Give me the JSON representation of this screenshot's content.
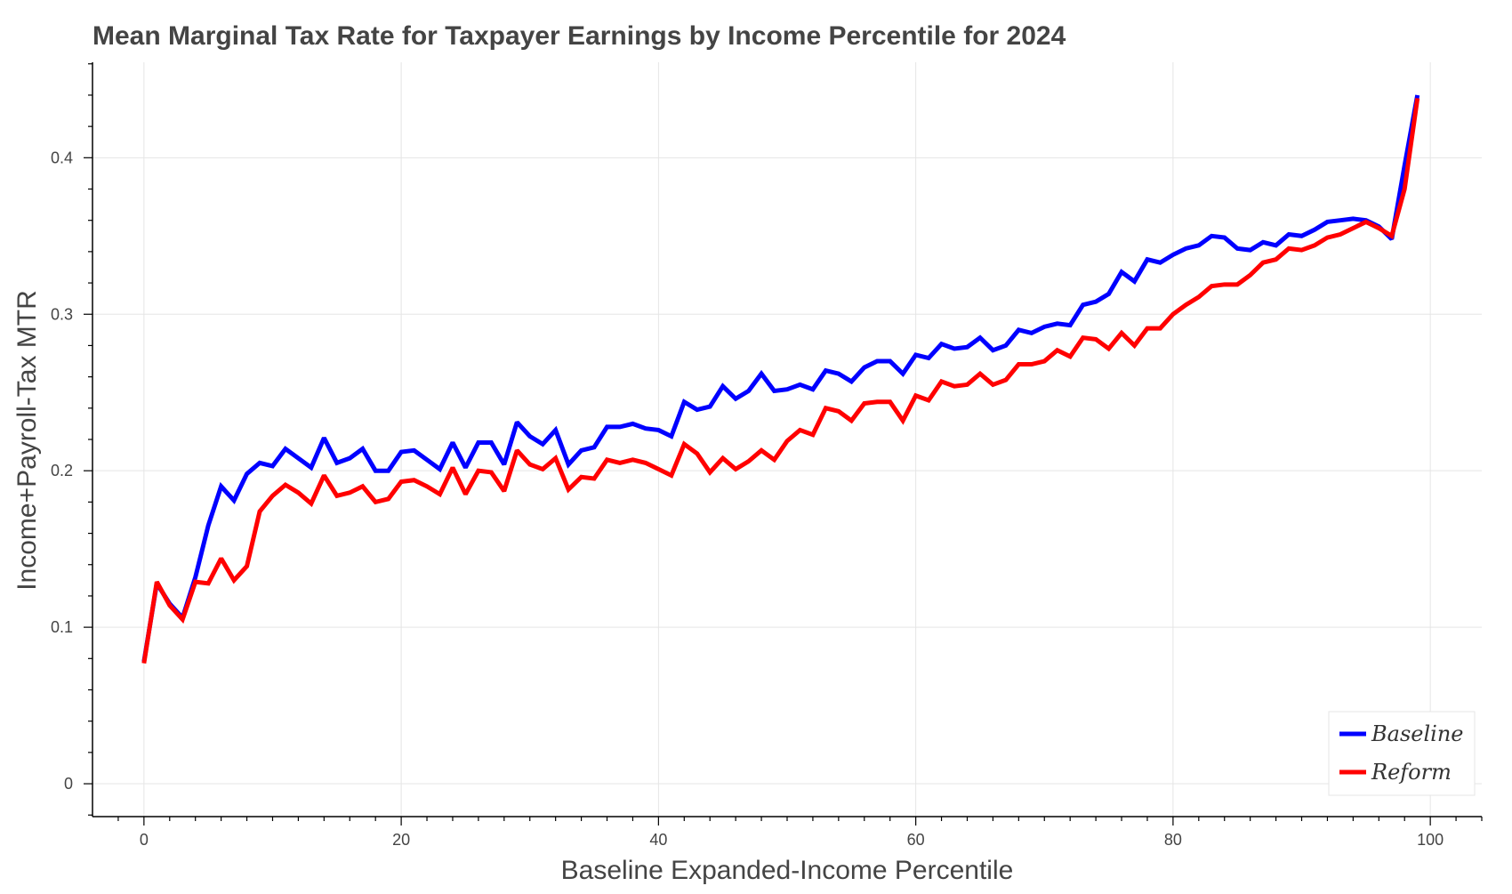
{
  "chart_data": {
    "type": "line",
    "title": "Mean Marginal Tax Rate for Taxpayer Earnings by Income Percentile for 2024",
    "xlabel": "Baseline Expanded-Income Percentile",
    "ylabel": "Income+Payroll-Tax MTR",
    "xlim": [
      -4,
      104
    ],
    "ylim": [
      -0.021,
      0.461
    ],
    "x_ticks": [
      0,
      20,
      40,
      60,
      80,
      100
    ],
    "x_tick_labels": [
      "0",
      "20",
      "40",
      "60",
      "80",
      "100"
    ],
    "y_ticks": [
      0,
      0.1,
      0.2,
      0.3,
      0.4
    ],
    "y_tick_labels": [
      "0",
      "0.1",
      "0.2",
      "0.3",
      "0.4"
    ],
    "grid": true,
    "legend_position": "bottom-right",
    "x": [
      0,
      1,
      2,
      3,
      4,
      5,
      6,
      7,
      8,
      9,
      10,
      11,
      12,
      13,
      14,
      15,
      16,
      17,
      18,
      19,
      20,
      21,
      22,
      23,
      24,
      25,
      26,
      27,
      28,
      29,
      30,
      31,
      32,
      33,
      34,
      35,
      36,
      37,
      38,
      39,
      40,
      41,
      42,
      43,
      44,
      45,
      46,
      47,
      48,
      49,
      50,
      51,
      52,
      53,
      54,
      55,
      56,
      57,
      58,
      59,
      60,
      61,
      62,
      63,
      64,
      65,
      66,
      67,
      68,
      69,
      70,
      71,
      72,
      73,
      74,
      75,
      76,
      77,
      78,
      79,
      80,
      81,
      82,
      83,
      84,
      85,
      86,
      87,
      88,
      89,
      90,
      91,
      92,
      93,
      94,
      95,
      96,
      97,
      98,
      99
    ],
    "series": [
      {
        "name": "Baseline",
        "color": "#0000ff",
        "values": [
          0.078,
          0.128,
          0.115,
          0.106,
          0.132,
          0.165,
          0.19,
          0.181,
          0.198,
          0.205,
          0.203,
          0.214,
          0.208,
          0.202,
          0.221,
          0.205,
          0.208,
          0.214,
          0.2,
          0.2,
          0.212,
          0.213,
          0.207,
          0.201,
          0.218,
          0.202,
          0.218,
          0.218,
          0.204,
          0.231,
          0.222,
          0.217,
          0.226,
          0.204,
          0.213,
          0.215,
          0.228,
          0.228,
          0.23,
          0.227,
          0.226,
          0.222,
          0.244,
          0.239,
          0.241,
          0.254,
          0.246,
          0.251,
          0.262,
          0.251,
          0.252,
          0.255,
          0.252,
          0.264,
          0.262,
          0.257,
          0.266,
          0.27,
          0.27,
          0.262,
          0.274,
          0.272,
          0.281,
          0.278,
          0.279,
          0.285,
          0.277,
          0.28,
          0.29,
          0.288,
          0.292,
          0.294,
          0.293,
          0.306,
          0.308,
          0.313,
          0.327,
          0.321,
          0.335,
          0.333,
          0.338,
          0.342,
          0.344,
          0.35,
          0.349,
          0.342,
          0.341,
          0.346,
          0.344,
          0.351,
          0.35,
          0.354,
          0.359,
          0.36,
          0.361,
          0.36,
          0.356,
          0.348,
          0.395,
          0.44
        ]
      },
      {
        "name": "Reform",
        "color": "#ff0000",
        "values": [
          0.077,
          0.129,
          0.114,
          0.105,
          0.129,
          0.128,
          0.144,
          0.13,
          0.139,
          0.174,
          0.184,
          0.191,
          0.186,
          0.179,
          0.197,
          0.184,
          0.186,
          0.19,
          0.18,
          0.182,
          0.193,
          0.194,
          0.19,
          0.185,
          0.202,
          0.185,
          0.2,
          0.199,
          0.187,
          0.213,
          0.204,
          0.201,
          0.208,
          0.188,
          0.196,
          0.195,
          0.207,
          0.205,
          0.207,
          0.205,
          0.201,
          0.197,
          0.217,
          0.211,
          0.199,
          0.208,
          0.201,
          0.206,
          0.213,
          0.207,
          0.219,
          0.226,
          0.223,
          0.24,
          0.238,
          0.232,
          0.243,
          0.244,
          0.244,
          0.232,
          0.248,
          0.245,
          0.257,
          0.254,
          0.255,
          0.262,
          0.255,
          0.258,
          0.268,
          0.268,
          0.27,
          0.277,
          0.273,
          0.285,
          0.284,
          0.278,
          0.288,
          0.28,
          0.291,
          0.291,
          0.3,
          0.306,
          0.311,
          0.318,
          0.319,
          0.319,
          0.325,
          0.333,
          0.335,
          0.342,
          0.341,
          0.344,
          0.349,
          0.351,
          0.355,
          0.359,
          0.355,
          0.35,
          0.38,
          0.438
        ]
      }
    ]
  }
}
